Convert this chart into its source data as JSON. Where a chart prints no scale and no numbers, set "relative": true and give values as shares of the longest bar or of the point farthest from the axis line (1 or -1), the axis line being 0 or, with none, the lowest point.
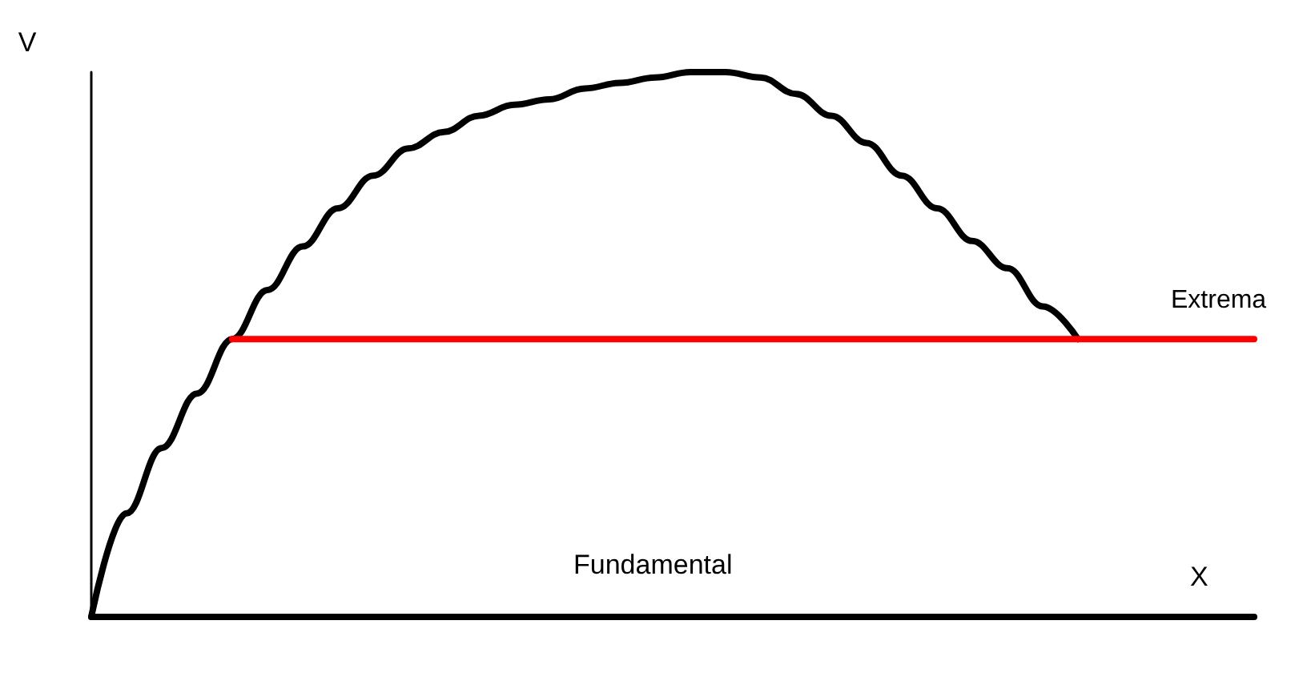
{
  "chart_data": {
    "type": "line",
    "relative": true,
    "xlabel": "X",
    "ylabel": "V",
    "annotations": [
      "Fundamental"
    ],
    "grid": false,
    "legend": false,
    "marker": "none",
    "line_style": "solid",
    "categories": [
      null,
      null,
      null,
      null,
      null,
      null,
      null,
      null,
      null,
      null,
      null,
      null,
      null,
      null,
      null,
      null,
      null,
      null,
      null,
      null,
      null,
      null,
      null,
      null,
      null,
      null,
      null,
      null,
      null,
      null,
      null,
      null,
      null,
      null
    ],
    "series": [
      {
        "color": "#000000",
        "values": [
          0,
          0.19,
          0.31,
          0.41,
          0.51,
          0.6,
          0.68,
          0.75,
          0.81,
          0.86,
          0.89,
          0.92,
          0.94,
          0.95,
          0.97,
          0.98,
          0.99,
          1,
          1,
          0.99,
          0.96,
          0.92,
          0.87,
          0.81,
          0.75,
          0.69,
          0.64,
          0.57,
          0.51,
          null,
          null,
          null,
          null,
          null
        ]
      },
      {
        "name": "Extrema",
        "color": "#ff0000",
        "values": [
          null,
          null,
          null,
          null,
          0.51,
          0.51,
          0.51,
          0.51,
          0.51,
          0.51,
          0.51,
          0.51,
          0.51,
          0.51,
          0.51,
          0.51,
          0.51,
          0.51,
          0.51,
          0.51,
          0.51,
          0.51,
          0.51,
          0.51,
          0.51,
          0.51,
          0.51,
          0.51,
          0.51,
          0.51,
          0.51,
          0.51,
          0.51,
          0.51
        ]
      }
    ]
  }
}
